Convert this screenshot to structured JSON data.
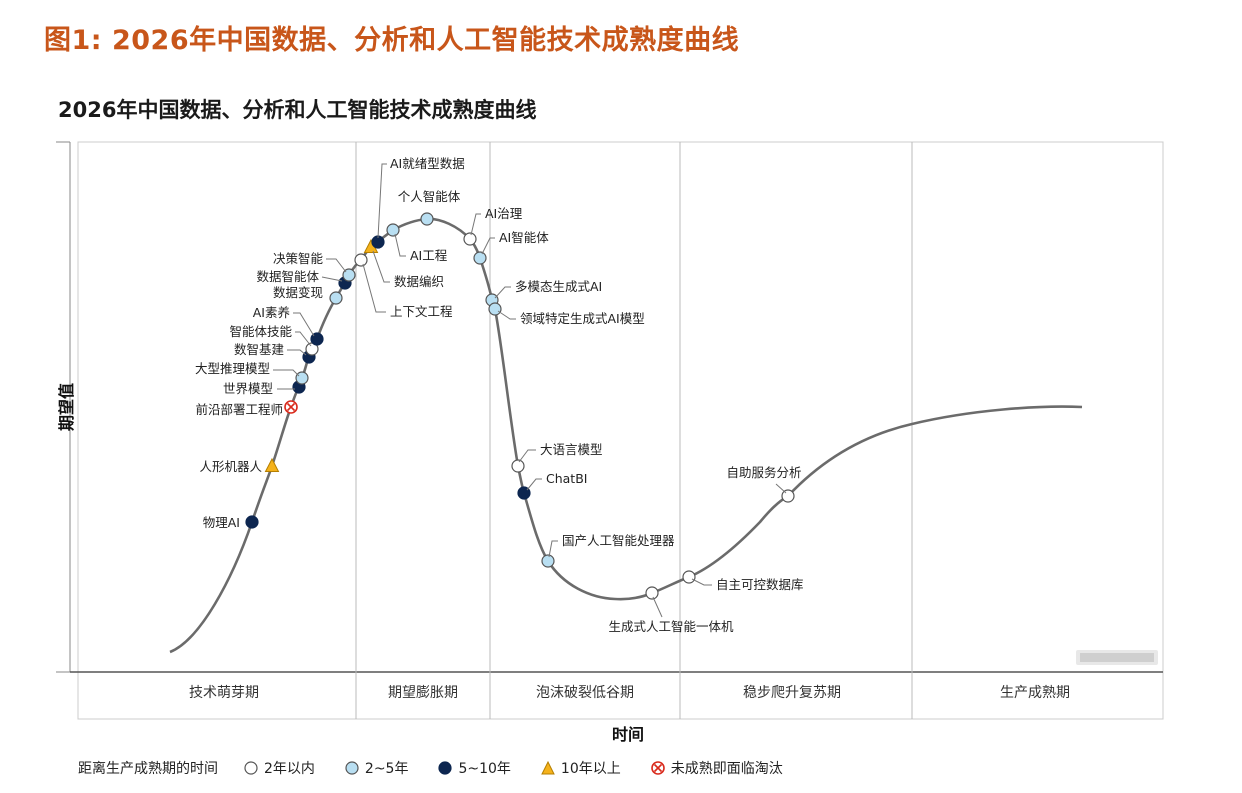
{
  "figure_title": "图1: 2026年中国数据、分析和人工智能技术成熟度曲线",
  "chart_data": {
    "type": "scatter",
    "title": "2026年中国数据、分析和人工智能技术成熟度曲线",
    "xlabel": "时间",
    "ylabel": "期望值",
    "phases": [
      "技术萌芽期",
      "期望膨胀期",
      "泡沫破裂低谷期",
      "稳步爬升复苏期",
      "生产成熟期"
    ],
    "categories": {
      "plateau_2": "2年以内",
      "plateau_2_5": "2~5年",
      "plateau_5_10": "5~10年",
      "plateau_10plus": "10年以上",
      "obsolete": "未成熟即面临淘汰"
    },
    "legend_title": "距离生产成熟期的时间",
    "colors": {
      "plateau_2": "#ffffff",
      "plateau_2_5": "#b9dff2",
      "plateau_5_10": "#0d2650",
      "plateau_10plus": "#f5b21b",
      "obsolete": "#d92a1c",
      "curve": "#6b6b6b"
    },
    "technologies": [
      {
        "name": "物理AI",
        "category": "plateau_5_10"
      },
      {
        "name": "人形机器人",
        "category": "plateau_10plus"
      },
      {
        "name": "前沿部署工程师",
        "category": "obsolete"
      },
      {
        "name": "世界模型",
        "category": "plateau_5_10"
      },
      {
        "name": "大型推理模型",
        "category": "plateau_2_5"
      },
      {
        "name": "数智基建",
        "category": "plateau_5_10"
      },
      {
        "name": "智能体技能",
        "category": "plateau_2"
      },
      {
        "name": "AI素养",
        "category": "plateau_5_10"
      },
      {
        "name": "数据变现",
        "category": "plateau_2_5"
      },
      {
        "name": "数据智能体",
        "category": "plateau_5_10"
      },
      {
        "name": "决策智能",
        "category": "plateau_2_5"
      },
      {
        "name": "上下文工程",
        "category": "plateau_2"
      },
      {
        "name": "数据编织",
        "category": "plateau_10plus"
      },
      {
        "name": "AI就绪型数据",
        "category": "plateau_5_10"
      },
      {
        "name": "AI工程",
        "category": "plateau_2_5"
      },
      {
        "name": "个人智能体",
        "category": "plateau_2_5"
      },
      {
        "name": "AI治理",
        "category": "plateau_2"
      },
      {
        "name": "AI智能体",
        "category": "plateau_2_5"
      },
      {
        "name": "多模态生成式AI",
        "category": "plateau_2_5"
      },
      {
        "name": "领域特定生成式AI模型",
        "category": "plateau_2_5"
      },
      {
        "name": "大语言模型",
        "category": "plateau_2"
      },
      {
        "name": "ChatBI",
        "category": "plateau_5_10"
      },
      {
        "name": "国产人工智能处理器",
        "category": "plateau_2_5"
      },
      {
        "name": "生成式人工智能一体机",
        "category": "plateau_2"
      },
      {
        "name": "自主可控数据库",
        "category": "plateau_2"
      },
      {
        "name": "自助服务分析",
        "category": "plateau_2"
      }
    ]
  }
}
